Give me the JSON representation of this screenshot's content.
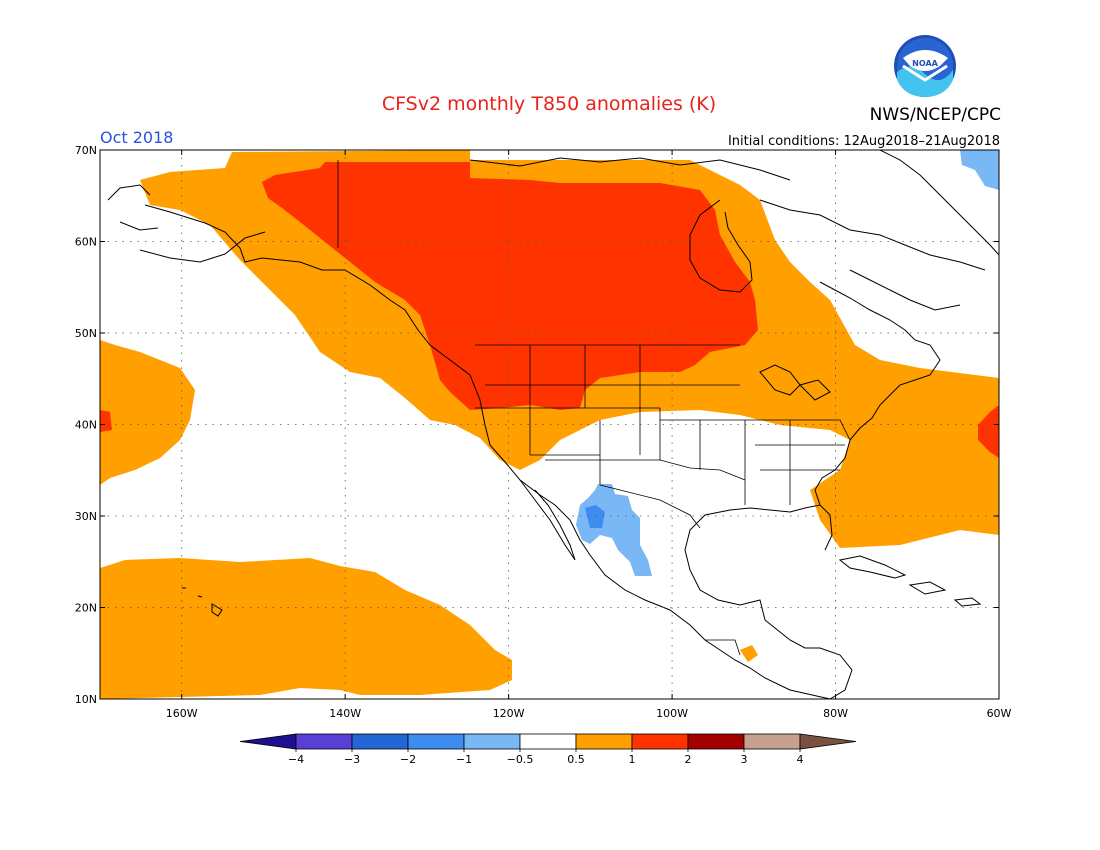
{
  "header": {
    "title": "CFSv2 monthly T850 anomalies (K)",
    "valid_month": "Oct 2018",
    "initial_conditions": "Initial conditions: 12Aug2018–21Aug2018",
    "agency": "NWS/NCEP/CPC",
    "logo_text": "NOAA"
  },
  "map": {
    "region": "North America and Eastern North Pacific",
    "lon_range": [
      -170,
      -60
    ],
    "lat_range": [
      10,
      70
    ],
    "lat_ticks": [
      {
        "value": 70,
        "label": "70N"
      },
      {
        "value": 60,
        "label": "60N"
      },
      {
        "value": 50,
        "label": "50N"
      },
      {
        "value": 40,
        "label": "40N"
      },
      {
        "value": 30,
        "label": "30N"
      },
      {
        "value": 20,
        "label": "20N"
      },
      {
        "value": 10,
        "label": "10N"
      }
    ],
    "lon_ticks": [
      {
        "value": -160,
        "label": "160W"
      },
      {
        "value": -140,
        "label": "140W"
      },
      {
        "value": -120,
        "label": "120W"
      },
      {
        "value": -100,
        "label": "100W"
      },
      {
        "value": -80,
        "label": "80W"
      },
      {
        "value": -60,
        "label": "60W"
      }
    ],
    "grid": true
  },
  "colorbar": {
    "labels": [
      "−4",
      "−3",
      "−2",
      "−1",
      "−0.5",
      "0.5",
      "1",
      "2",
      "3",
      "4"
    ],
    "colors": [
      "#1e0f8c",
      "#5a3fd6",
      "#2366d6",
      "#3d8df0",
      "#7ab8f5",
      "#ffffff",
      "#ff9f00",
      "#ff3300",
      "#a50000",
      "#c8a090",
      "#7a5040"
    ],
    "units": "K"
  },
  "colors": {
    "anomaly_0_5_to_1": "#ff9f00",
    "anomaly_1_to_2": "#ff3300",
    "anomaly_neg_1_to_neg_0_5": "#7ab8f5",
    "anomaly_neg_2_to_neg_1": "#3d8df0",
    "land_outline": "#000000"
  }
}
